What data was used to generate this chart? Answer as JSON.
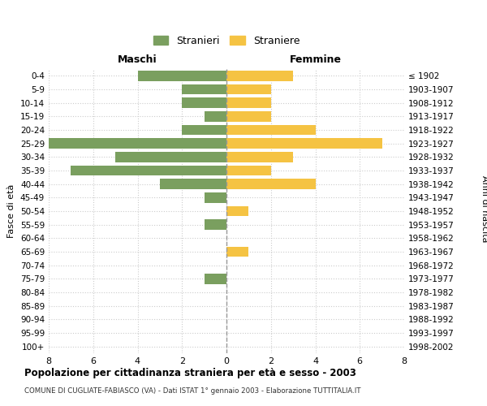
{
  "age_groups": [
    "0-4",
    "5-9",
    "10-14",
    "15-19",
    "20-24",
    "25-29",
    "30-34",
    "35-39",
    "40-44",
    "45-49",
    "50-54",
    "55-59",
    "60-64",
    "65-69",
    "70-74",
    "75-79",
    "80-84",
    "85-89",
    "90-94",
    "95-99",
    "100+"
  ],
  "birth_years": [
    "1998-2002",
    "1993-1997",
    "1988-1992",
    "1983-1987",
    "1978-1982",
    "1973-1977",
    "1968-1972",
    "1963-1967",
    "1958-1962",
    "1953-1957",
    "1948-1952",
    "1943-1947",
    "1938-1942",
    "1933-1937",
    "1928-1932",
    "1923-1927",
    "1918-1922",
    "1913-1917",
    "1908-1912",
    "1903-1907",
    "≤ 1902"
  ],
  "maschi": [
    4,
    2,
    2,
    1,
    2,
    8,
    5,
    7,
    3,
    1,
    0,
    1,
    0,
    0,
    0,
    1,
    0,
    0,
    0,
    0,
    0
  ],
  "femmine": [
    3,
    2,
    2,
    2,
    4,
    7,
    3,
    2,
    4,
    0,
    1,
    0,
    0,
    1,
    0,
    0,
    0,
    0,
    0,
    0,
    0
  ],
  "color_maschi": "#7a9f5f",
  "color_femmine": "#f5c343",
  "title_main": "Popolazione per cittadinanza straniera per età e sesso - 2003",
  "title_sub": "COMUNE DI CUGLIATE-FABIASCO (VA) - Dati ISTAT 1° gennaio 2003 - Elaborazione TUTTITALIA.IT",
  "label_maschi": "Maschi",
  "label_femmine": "Femmine",
  "legend_stranieri": "Stranieri",
  "legend_straniere": "Straniere",
  "ylabel_left": "Fasce di età",
  "ylabel_right": "Anni di nascita",
  "xlim": 8,
  "background_color": "#ffffff",
  "grid_color": "#cccccc"
}
